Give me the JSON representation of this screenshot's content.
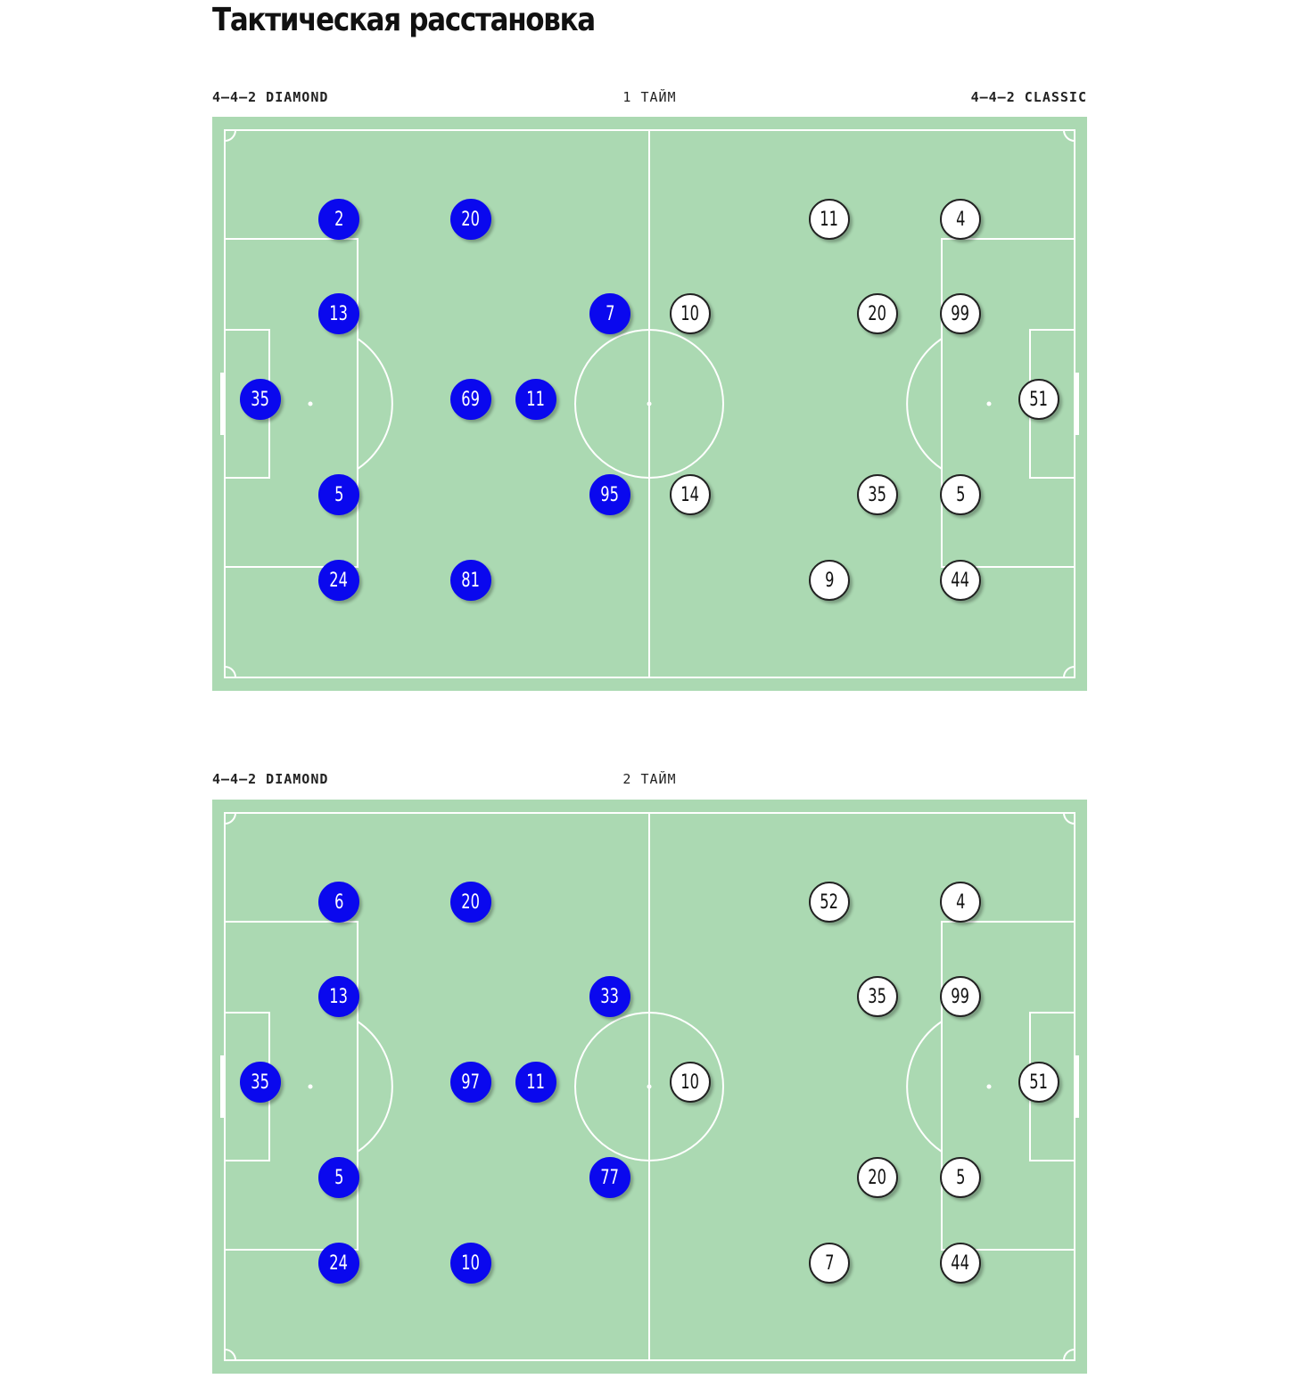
{
  "title": "Тактическая расстановка",
  "colors": {
    "pitch": "#abd9b2",
    "lines": "#ffffff",
    "home": "#0a08ee",
    "away": "#ffffff"
  },
  "halves": [
    {
      "label": "1 ТАЙМ",
      "home_formation": "4–4–2 DIAMOND",
      "away_formation": "4–4–2 CLASSIC",
      "home_players": [
        {
          "number": "2",
          "row": 0,
          "col": 1
        },
        {
          "number": "20",
          "row": 0,
          "col": 2
        },
        {
          "number": "13",
          "row": 1,
          "col": 1
        },
        {
          "number": "7",
          "row": 1,
          "col": 4
        },
        {
          "number": "35",
          "row": 2,
          "col": 0
        },
        {
          "number": "69",
          "row": 2,
          "col": 2
        },
        {
          "number": "11",
          "row": 2,
          "col": 3
        },
        {
          "number": "5",
          "row": 3,
          "col": 1
        },
        {
          "number": "95",
          "row": 3,
          "col": 4
        },
        {
          "number": "24",
          "row": 4,
          "col": 1
        },
        {
          "number": "81",
          "row": 4,
          "col": 2
        }
      ],
      "away_players": [
        {
          "number": "11",
          "row": 0,
          "col": 2
        },
        {
          "number": "4",
          "row": 0,
          "col": 1
        },
        {
          "number": "10",
          "row": 1,
          "col": 4
        },
        {
          "number": "20",
          "row": 1,
          "col": 3
        },
        {
          "number": "99",
          "row": 1,
          "col": 1
        },
        {
          "number": "51",
          "row": 2,
          "col": 0
        },
        {
          "number": "14",
          "row": 3,
          "col": 4
        },
        {
          "number": "35",
          "row": 3,
          "col": 3
        },
        {
          "number": "5",
          "row": 3,
          "col": 1
        },
        {
          "number": "9",
          "row": 4,
          "col": 2
        },
        {
          "number": "44",
          "row": 4,
          "col": 1
        }
      ]
    },
    {
      "label": "2 ТАЙМ",
      "home_formation": "4–4–2 DIAMOND",
      "away_formation": "",
      "home_players": [
        {
          "number": "6",
          "row": 0,
          "col": 1
        },
        {
          "number": "20",
          "row": 0,
          "col": 2
        },
        {
          "number": "13",
          "row": 1,
          "col": 1
        },
        {
          "number": "33",
          "row": 1,
          "col": 4
        },
        {
          "number": "35",
          "row": 2,
          "col": 0
        },
        {
          "number": "97",
          "row": 2,
          "col": 2
        },
        {
          "number": "11",
          "row": 2,
          "col": 3
        },
        {
          "number": "5",
          "row": 3,
          "col": 1
        },
        {
          "number": "77",
          "row": 3,
          "col": 4
        },
        {
          "number": "24",
          "row": 4,
          "col": 1
        },
        {
          "number": "10",
          "row": 4,
          "col": 2
        }
      ],
      "away_players": [
        {
          "number": "52",
          "row": 0,
          "col": 2
        },
        {
          "number": "4",
          "row": 0,
          "col": 1
        },
        {
          "number": "35",
          "row": 1,
          "col": 3
        },
        {
          "number": "99",
          "row": 1,
          "col": 1
        },
        {
          "number": "10",
          "row": 2,
          "col": 4
        },
        {
          "number": "51",
          "row": 2,
          "col": 0
        },
        {
          "number": "20",
          "row": 3,
          "col": 3
        },
        {
          "number": "5",
          "row": 3,
          "col": 1
        },
        {
          "number": "7",
          "row": 4,
          "col": 2
        },
        {
          "number": "44",
          "row": 4,
          "col": 1
        }
      ]
    }
  ]
}
